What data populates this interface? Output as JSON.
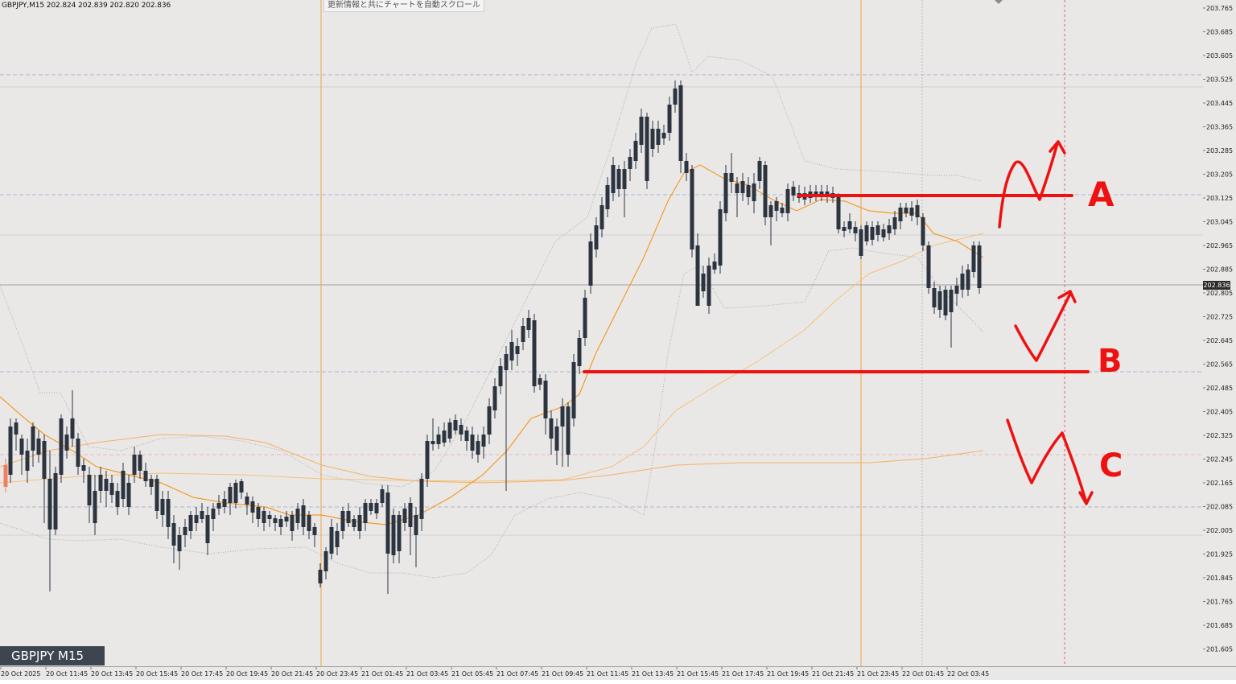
{
  "header": {
    "symbol_info": "GBPJPY,M15  202.824 202.839 202.820 202.836",
    "autoscroll_note": "更新情報と共にチャートを自動スクロール"
  },
  "watermark": "GBPJPY M15",
  "current_price": "202.836",
  "price_axis": [
    "203.765",
    "203.685",
    "203.605",
    "203.525",
    "203.445",
    "203.365",
    "203.285",
    "203.205",
    "203.125",
    "203.045",
    "202.965",
    "202.885",
    "202.805",
    "202.725",
    "202.645",
    "202.565",
    "202.485",
    "202.405",
    "202.325",
    "202.245",
    "202.165",
    "202.085",
    "202.005",
    "201.925",
    "201.845",
    "201.765",
    "201.685",
    "201.605"
  ],
  "time_axis": [
    "20 Oct 2025",
    "20 Oct 11:45",
    "20 Oct 13:45",
    "20 Oct 15:45",
    "20 Oct 17:45",
    "20 Oct 19:45",
    "20 Oct 21:45",
    "20 Oct 23:45",
    "21 Oct 01:45",
    "21 Oct 03:45",
    "21 Oct 05:45",
    "21 Oct 07:45",
    "21 Oct 09:45",
    "21 Oct 11:45",
    "21 Oct 13:45",
    "21 Oct 15:45",
    "21 Oct 17:45",
    "21 Oct 19:45",
    "21 Oct 21:45",
    "21 Oct 23:45",
    "22 Oct 01:45",
    "22 Oct 03:45"
  ],
  "annotations": {
    "a": "A",
    "b": "B",
    "c": "C"
  },
  "colors": {
    "bull": "#f07f62",
    "bear": "#2c3440",
    "moving_average": "#f39a2a",
    "bollinger": "#a9a9a9",
    "annotation": "#ee1111",
    "session_line": "#f0a040",
    "dashed_level": "#a8b8d0"
  }
}
